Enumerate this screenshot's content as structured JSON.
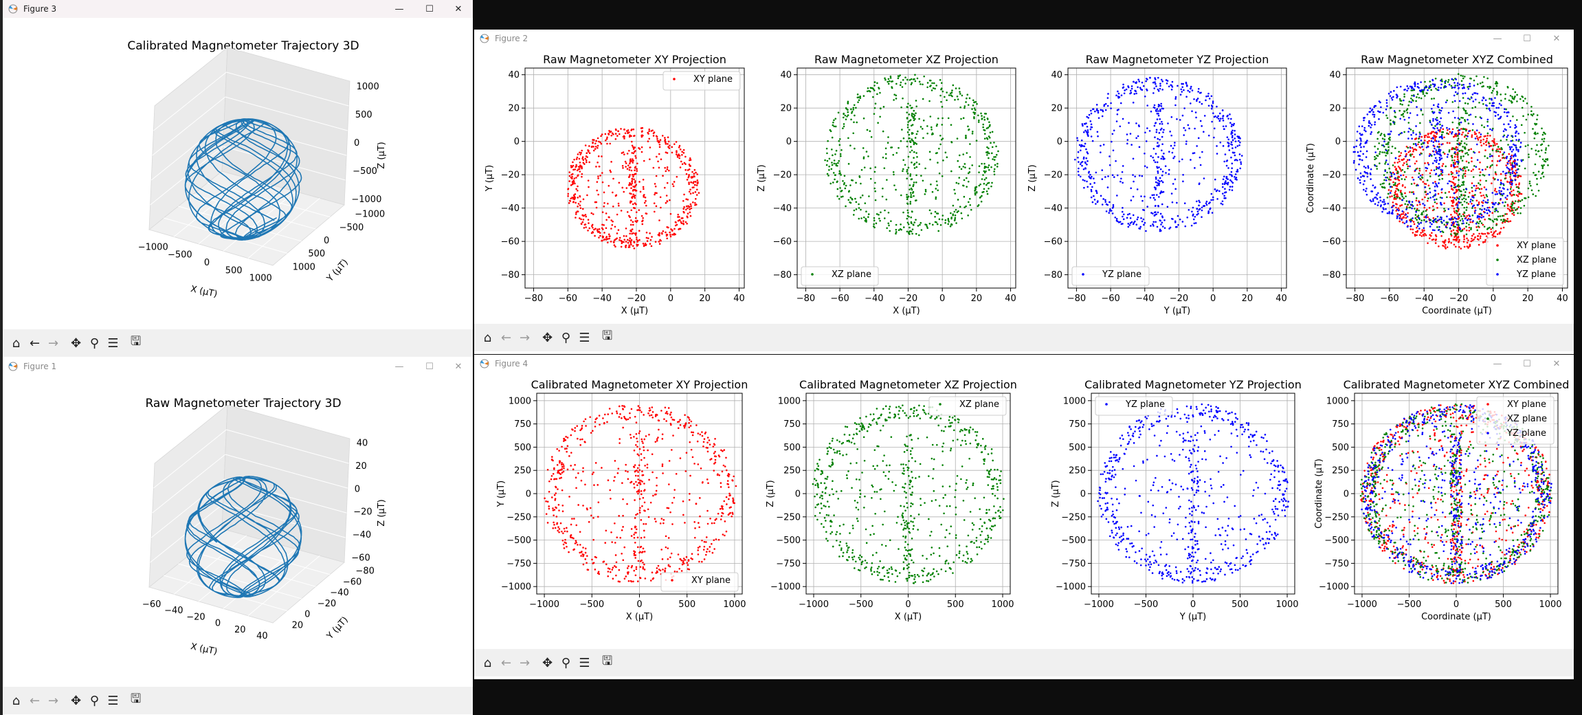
{
  "windows": {
    "fig3": {
      "title": "Figure 3",
      "plot_title": "Calibrated Magnetometer Trajectory 3D",
      "x_ticks": [
        "−1000",
        "−500",
        "0",
        "500",
        "1000"
      ],
      "y_ticks": [
        "−1000",
        "−500",
        "0",
        "500",
        "1000"
      ],
      "z_ticks": [
        "1000",
        "500",
        "0",
        "−500",
        "−1000"
      ],
      "xlabel": "X (μT)",
      "ylabel": "Y (μT)",
      "zlabel": "Z (μT)"
    },
    "fig1": {
      "title": "Figure 1",
      "plot_title": "Raw Magnetometer Trajectory 3D",
      "x_ticks": [
        "−60",
        "−40",
        "−20",
        "0",
        "20",
        "40"
      ],
      "y_ticks": [
        "−80",
        "−60",
        "−40",
        "−20",
        "0",
        "20"
      ],
      "z_ticks": [
        "40",
        "20",
        "0",
        "−20",
        "−40",
        "−60"
      ],
      "xlabel": "X (μT)",
      "ylabel": "Y (μT)",
      "zlabel": "Z (μT)"
    },
    "fig2": {
      "title": "Figure 2"
    },
    "fig4": {
      "title": "Figure 4"
    }
  },
  "colors": {
    "red": "#ff0000",
    "green": "#008000",
    "blue": "#0000ff",
    "trajectory": "#1f77b4"
  },
  "chart_data": [
    {
      "type": "scatter",
      "title": "Raw Magnetometer XY Projection",
      "xlabel": "X (μT)",
      "ylabel": "Y (μT)",
      "xlim": [
        -85,
        43
      ],
      "ylim": [
        -88,
        44
      ],
      "xticks": [
        -80,
        -60,
        -40,
        -20,
        0,
        20,
        40
      ],
      "yticks": [
        -80,
        -60,
        -40,
        -20,
        0,
        20,
        40
      ],
      "legend": "top-right",
      "series": [
        {
          "name": "XY plane",
          "color": "red",
          "cx": -22,
          "cy": -28,
          "r": 38
        }
      ],
      "grid": true
    },
    {
      "type": "scatter",
      "title": "Raw Magnetometer XZ Projection",
      "xlabel": "X (μT)",
      "ylabel": "Z (μT)",
      "xlim": [
        -85,
        43
      ],
      "ylim": [
        -88,
        44
      ],
      "xticks": [
        -80,
        -60,
        -40,
        -20,
        0,
        20,
        40
      ],
      "yticks": [
        -80,
        -60,
        -40,
        -20,
        0,
        20,
        40
      ],
      "legend": "bottom-left",
      "series": [
        {
          "name": "XZ plane",
          "color": "green",
          "cx": -18,
          "cy": -8,
          "r": 50
        }
      ],
      "grid": true
    },
    {
      "type": "scatter",
      "title": "Raw Magnetometer YZ Projection",
      "xlabel": "Y (μT)",
      "ylabel": "Z (μT)",
      "xlim": [
        -85,
        43
      ],
      "ylim": [
        -88,
        44
      ],
      "xticks": [
        -80,
        -60,
        -40,
        -20,
        0,
        20,
        40
      ],
      "yticks": [
        -80,
        -60,
        -40,
        -20,
        0,
        20,
        40
      ],
      "legend": "bottom-left",
      "series": [
        {
          "name": "YZ plane",
          "color": "blue",
          "cx": -32,
          "cy": -8,
          "r": 48
        }
      ],
      "grid": true
    },
    {
      "type": "scatter",
      "title": "Raw Magnetometer XYZ Combined",
      "xlabel": "Coordinate (μT)",
      "ylabel": "Coordinate (μT)",
      "xlim": [
        -85,
        43
      ],
      "ylim": [
        -88,
        44
      ],
      "xticks": [
        -80,
        -60,
        -40,
        -20,
        0,
        20,
        40
      ],
      "yticks": [
        -80,
        -60,
        -40,
        -20,
        0,
        20,
        40
      ],
      "legend": "bottom-right",
      "series": [
        {
          "name": "XY plane",
          "color": "red",
          "cx": -22,
          "cy": -28,
          "r": 38
        },
        {
          "name": "XZ plane",
          "color": "green",
          "cx": -18,
          "cy": -8,
          "r": 50
        },
        {
          "name": "YZ plane",
          "color": "blue",
          "cx": -32,
          "cy": -8,
          "r": 48
        }
      ],
      "grid": true
    },
    {
      "type": "scatter",
      "title": "Calibrated Magnetometer XY Projection",
      "xlabel": "X (μT)",
      "ylabel": "Y (μT)",
      "xlim": [
        -1080,
        1080
      ],
      "ylim": [
        -1080,
        1080
      ],
      "xticks": [
        -1000,
        -500,
        0,
        500,
        1000
      ],
      "yticks": [
        -1000,
        -750,
        -500,
        -250,
        0,
        250,
        500,
        750,
        1000
      ],
      "legend": "bottom-right",
      "series": [
        {
          "name": "XY plane",
          "color": "red",
          "cx": 0,
          "cy": 0,
          "r": 1000
        }
      ],
      "grid": true
    },
    {
      "type": "scatter",
      "title": "Calibrated Magnetometer XZ Projection",
      "xlabel": "X (μT)",
      "ylabel": "Z (μT)",
      "xlim": [
        -1080,
        1080
      ],
      "ylim": [
        -1080,
        1080
      ],
      "xticks": [
        -1000,
        -500,
        0,
        500,
        1000
      ],
      "yticks": [
        -1000,
        -750,
        -500,
        -250,
        0,
        250,
        500,
        750,
        1000
      ],
      "legend": "top-right",
      "series": [
        {
          "name": "XZ plane",
          "color": "green",
          "cx": 0,
          "cy": 0,
          "r": 1000
        }
      ],
      "grid": true
    },
    {
      "type": "scatter",
      "title": "Calibrated Magnetometer YZ Projection",
      "xlabel": "Y (μT)",
      "ylabel": "Z (μT)",
      "xlim": [
        -1080,
        1080
      ],
      "ylim": [
        -1080,
        1080
      ],
      "xticks": [
        -1000,
        -500,
        0,
        500,
        1000
      ],
      "yticks": [
        -1000,
        -750,
        -500,
        -250,
        0,
        250,
        500,
        750,
        1000
      ],
      "legend": "top-left",
      "series": [
        {
          "name": "YZ plane",
          "color": "blue",
          "cx": 0,
          "cy": 0,
          "r": 1000
        }
      ],
      "grid": true
    },
    {
      "type": "scatter",
      "title": "Calibrated Magnetometer XYZ Combined",
      "xlabel": "Coordinate (μT)",
      "ylabel": "Coordinate (μT)",
      "xlim": [
        -1080,
        1080
      ],
      "ylim": [
        -1080,
        1080
      ],
      "xticks": [
        -1000,
        -500,
        0,
        500,
        1000
      ],
      "yticks": [
        -1000,
        -750,
        -500,
        -250,
        0,
        250,
        500,
        750,
        1000
      ],
      "legend": "top-right",
      "series": [
        {
          "name": "XY plane",
          "color": "red",
          "cx": 0,
          "cy": 0,
          "r": 1000
        },
        {
          "name": "XZ plane",
          "color": "green",
          "cx": 0,
          "cy": 0,
          "r": 1000
        },
        {
          "name": "YZ plane",
          "color": "blue",
          "cx": 0,
          "cy": 0,
          "r": 1000
        }
      ],
      "grid": true
    }
  ],
  "toolbar_icons": [
    "home-icon",
    "back-arrow-icon",
    "forward-arrow-icon",
    "pan-icon",
    "zoom-icon",
    "configure-subplots-icon",
    "save-icon"
  ]
}
